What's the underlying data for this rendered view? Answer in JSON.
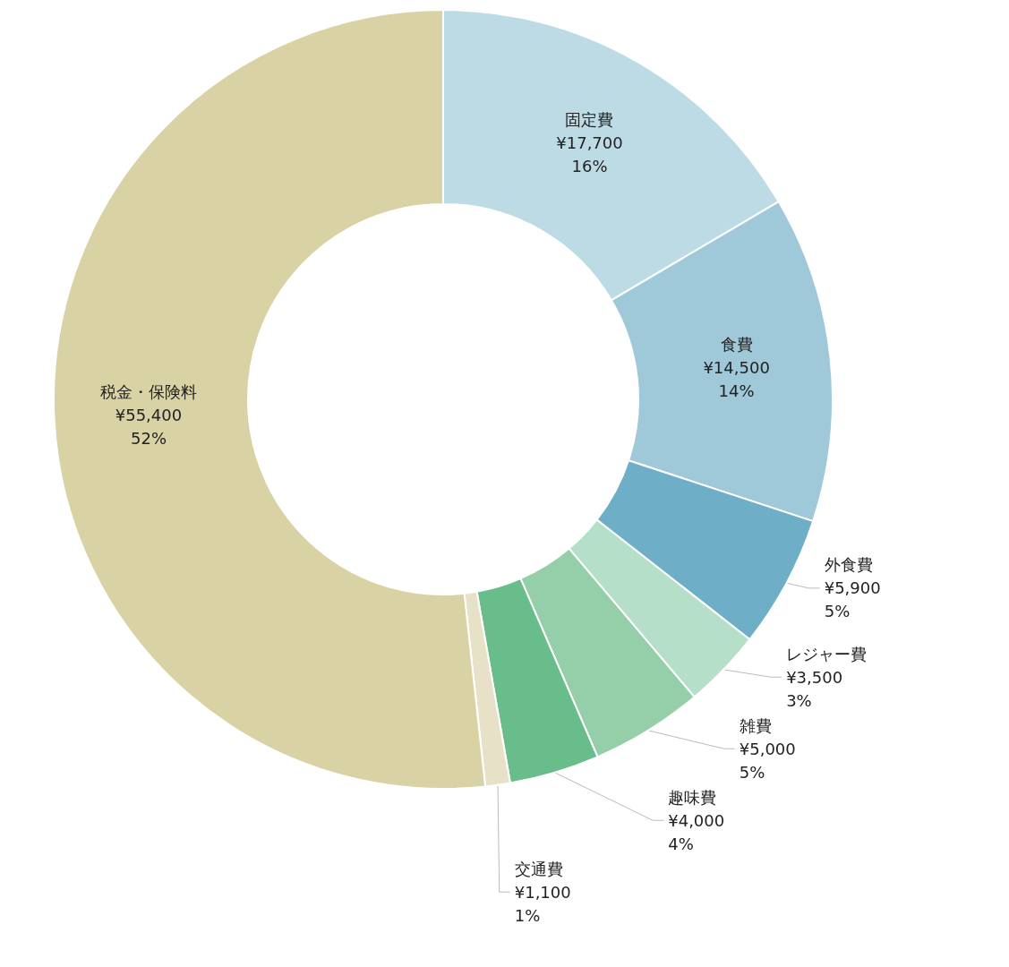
{
  "chart_data": {
    "type": "donut",
    "categories": [
      "固定費",
      "食費",
      "外食費",
      "レジャー費",
      "雑費",
      "趣味費",
      "交通費",
      "税金・保険料"
    ],
    "values": [
      17700,
      14500,
      5900,
      3500,
      5000,
      4000,
      1100,
      55400
    ],
    "colors": [
      "#bddbe5",
      "#9fc9d8",
      "#6eaec7",
      "#b6dfc9",
      "#95cfaa",
      "#69bd8a",
      "#e7e2c7",
      "#d9d2a5"
    ],
    "value_labels": [
      "¥17,700\n16%",
      "¥14,500\n14%",
      "¥5,900\n5%",
      "¥3,500\n3%",
      "¥5,000\n5%",
      "¥4,000\n4%",
      "¥1,100\n1%",
      "¥55,400\n52%"
    ],
    "legend": false
  }
}
